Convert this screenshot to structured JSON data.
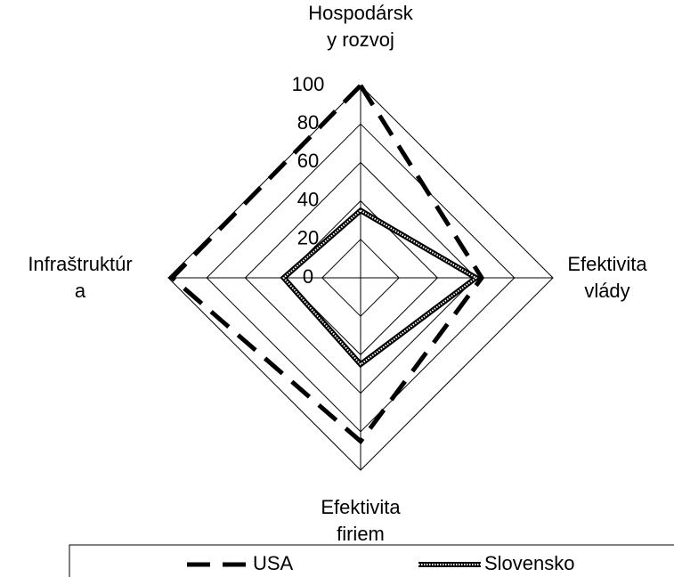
{
  "chart_data": {
    "type": "radar",
    "categories": [
      "Hospodársky rozvoj",
      "Efektivita vlády",
      "Efektivita firiem",
      "Infraštruktúra"
    ],
    "series": [
      {
        "name": "USA",
        "color": "#000000",
        "style": "dashed",
        "values": [
          100,
          63,
          85,
          98
        ]
      },
      {
        "name": "Slovensko",
        "color": "#000000",
        "style": "hatched",
        "values": [
          35,
          60,
          45,
          40
        ]
      }
    ],
    "rlim": [
      0,
      100
    ],
    "rticks": [
      0,
      20,
      40,
      60,
      80,
      100
    ],
    "grid": true,
    "legend": "bottom"
  }
}
